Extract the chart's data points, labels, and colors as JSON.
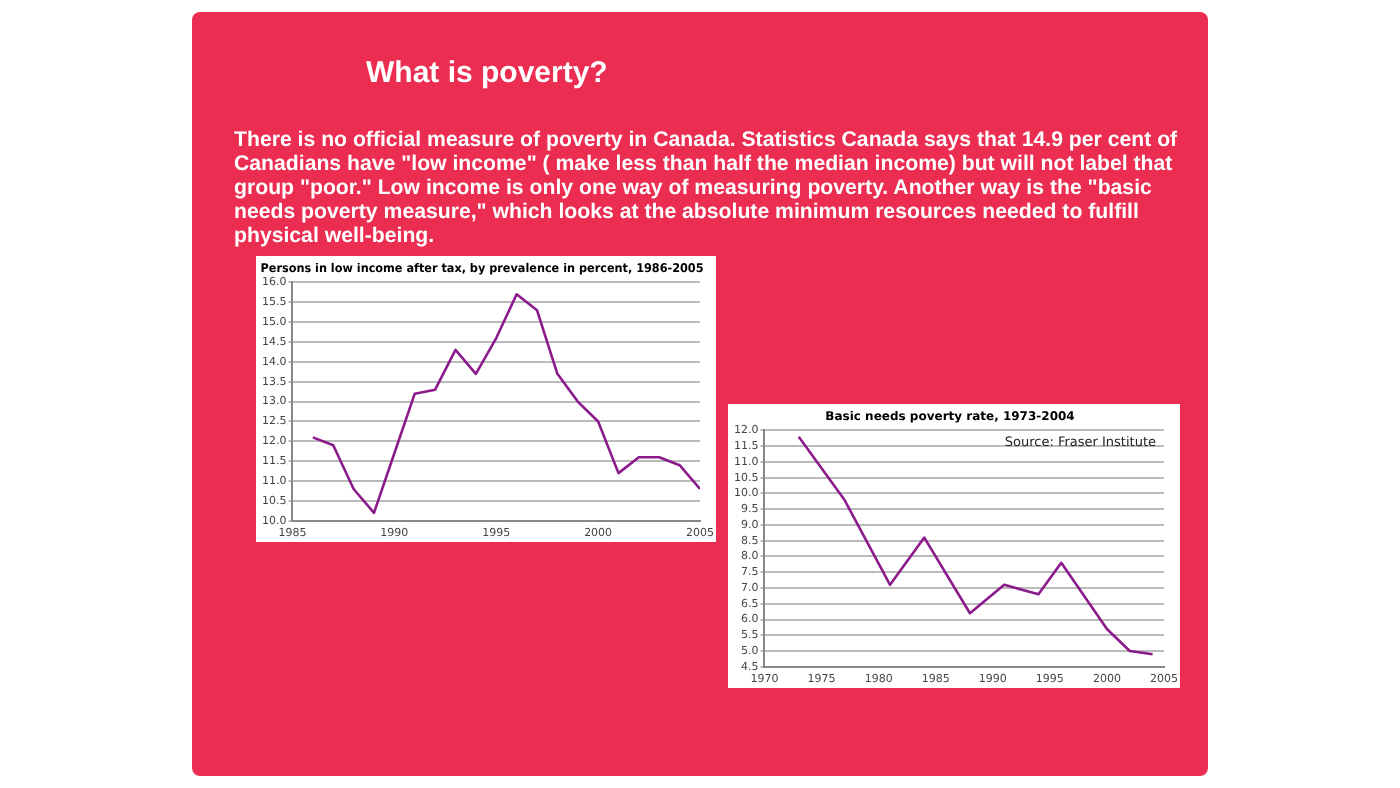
{
  "chart_data": [
    {
      "type": "other",
      "title": "What is poverty?",
      "annotations": [
        "There is no official measure of poverty in Canada. Statistics Canada says that 14.9 per cent of Canadians have \"low income\" ( make less than half the median income) but will not  label that group \"poor.\" Low income is only one way of measuring poverty. Another way is the \"basic needs poverty measure,\" which looks at the absolute minimum resources needed to fulfill physical well-being."
      ]
    },
    {
      "type": "line",
      "title": "Persons in low income after tax, by prevalence in percent, 1986-2005",
      "x": [
        1986,
        1987,
        1988,
        1989,
        1990,
        1991,
        1992,
        1993,
        1994,
        1995,
        1996,
        1997,
        1998,
        1999,
        2000,
        2001,
        2002,
        2003,
        2004,
        2005
      ],
      "series": [
        {
          "color": "#8b1a8b",
          "values": [
            12.1,
            11.9,
            10.8,
            10.2,
            11.7,
            13.2,
            13.3,
            14.3,
            13.7,
            14.6,
            15.7,
            15.3,
            13.7,
            13.0,
            12.5,
            11.2,
            11.6,
            11.6,
            11.4,
            10.8
          ]
        }
      ],
      "xlim": [
        1985,
        2005
      ],
      "xticks": [
        1985,
        1990,
        1995,
        2000,
        2005
      ],
      "ylim": [
        10,
        16
      ],
      "yticks": [
        {
          "value": 10,
          "label": "10.0"
        },
        {
          "value": 10.5,
          "label": "10.5"
        },
        {
          "value": 11,
          "label": "11.0"
        },
        {
          "value": 11.5,
          "label": "11.5"
        },
        {
          "value": 12,
          "label": "12.0"
        },
        {
          "value": 12.5,
          "label": "12.5"
        },
        {
          "value": 13,
          "label": "13.0"
        },
        {
          "value": 13.5,
          "label": "13.5"
        },
        {
          "value": 14,
          "label": "14.0"
        },
        {
          "value": 14.5,
          "label": "14.5"
        },
        {
          "value": 15,
          "label": "15.0"
        },
        {
          "value": 15.5,
          "label": "15.5"
        },
        {
          "value": 16,
          "label": "16.0"
        }
      ],
      "grid": "y",
      "marker": "none"
    },
    {
      "type": "line",
      "title": "Basic needs poverty rate, 1973-2004",
      "x": [
        1973,
        1977,
        1981,
        1984,
        1988,
        1991,
        1994,
        1996,
        2000,
        2002,
        2004
      ],
      "series": [
        {
          "color": "#8b1a8b",
          "values": [
            11.8,
            9.8,
            7.1,
            8.6,
            6.2,
            7.1,
            6.8,
            7.8,
            5.7,
            5.0,
            4.9
          ]
        }
      ],
      "xlim": [
        1970,
        2005
      ],
      "xticks": [
        1970,
        1975,
        1980,
        1985,
        1990,
        1995,
        2000,
        2005
      ],
      "ylim": [
        4.5,
        12
      ],
      "yticks": [
        4.5,
        {
          "value": 5,
          "label": "5.0"
        },
        5.5,
        {
          "value": 6,
          "label": "6.0"
        },
        6.5,
        {
          "value": 7,
          "label": "7.0"
        },
        7.5,
        {
          "value": 8,
          "label": "8.0"
        },
        8.5,
        {
          "value": 9,
          "label": "9.0"
        },
        9.5,
        {
          "value": 10,
          "label": "10.0"
        },
        10.5,
        {
          "value": 11,
          "label": "11.0"
        },
        11.5,
        {
          "value": 12,
          "label": "12.0"
        }
      ],
      "grid": "y",
      "marker": "none",
      "annotations": [
        "Source: Fraser Institute"
      ]
    }
  ]
}
